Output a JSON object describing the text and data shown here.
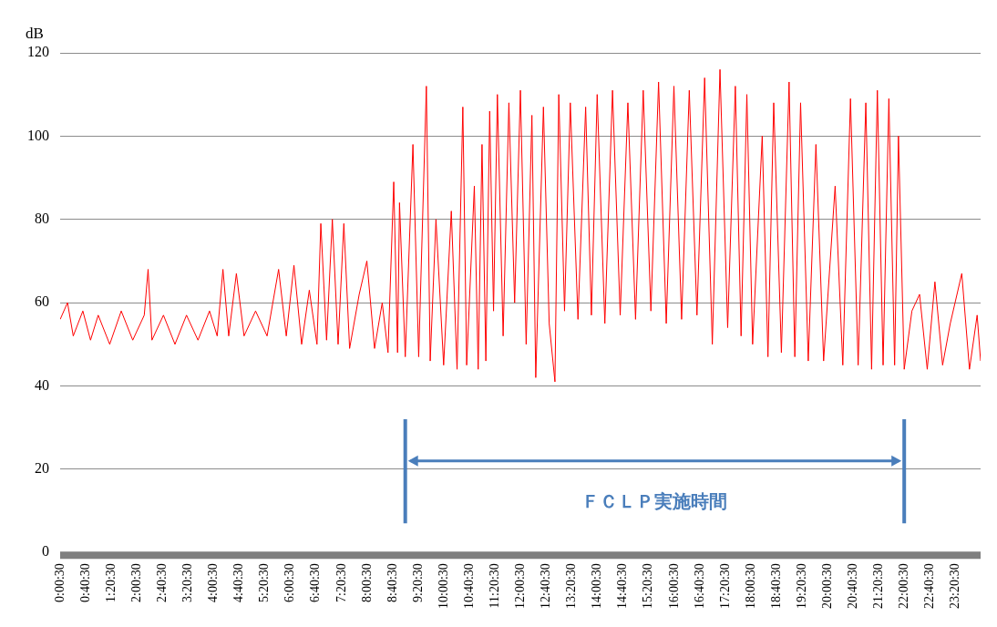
{
  "chart_data": {
    "type": "line",
    "ylabel": "dB",
    "x": [
      0.01,
      0.2,
      0.35,
      0.6,
      0.8,
      1.0,
      1.3,
      1.6,
      1.9,
      2.2,
      2.3,
      2.4,
      2.7,
      3.0,
      3.3,
      3.6,
      3.9,
      4.1,
      4.25,
      4.4,
      4.6,
      4.8,
      5.1,
      5.4,
      5.7,
      5.9,
      6.1,
      6.3,
      6.5,
      6.7,
      6.8,
      6.95,
      7.1,
      7.25,
      7.4,
      7.55,
      7.8,
      8.0,
      8.2,
      8.4,
      8.55,
      8.7,
      8.8,
      8.85,
      9.0,
      9.2,
      9.35,
      9.55,
      9.65,
      9.8,
      10.0,
      10.2,
      10.35,
      10.5,
      10.6,
      10.8,
      10.9,
      11.0,
      11.1,
      11.2,
      11.3,
      11.4,
      11.55,
      11.7,
      11.85,
      12.0,
      12.15,
      12.3,
      12.4,
      12.6,
      12.75,
      12.9,
      13.0,
      13.15,
      13.3,
      13.5,
      13.7,
      13.85,
      14.0,
      14.2,
      14.4,
      14.6,
      14.8,
      15.0,
      15.2,
      15.4,
      15.6,
      15.8,
      16.0,
      16.2,
      16.4,
      16.6,
      16.8,
      17.0,
      17.2,
      17.4,
      17.6,
      17.75,
      17.9,
      18.05,
      18.3,
      18.45,
      18.6,
      18.8,
      19.0,
      19.15,
      19.3,
      19.5,
      19.7,
      19.9,
      20.2,
      20.4,
      20.6,
      20.8,
      21.0,
      21.15,
      21.3,
      21.45,
      21.6,
      21.75,
      21.85,
      22.0,
      22.2,
      22.4,
      22.6,
      22.8,
      23.0,
      23.2,
      23.5,
      23.7,
      23.9,
      23.99
    ],
    "series": [
      {
        "color": "#ff0000",
        "values": [
          56,
          60,
          52,
          58,
          51,
          57,
          50,
          58,
          51,
          57,
          68,
          51,
          57,
          50,
          57,
          51,
          58,
          52,
          68,
          52,
          67,
          52,
          58,
          52,
          68,
          52,
          69,
          50,
          63,
          50,
          79,
          51,
          80,
          50,
          79,
          49,
          62,
          70,
          49,
          60,
          48,
          89,
          48,
          84,
          47,
          98,
          47,
          112,
          46,
          80,
          45,
          82,
          44,
          107,
          45,
          88,
          44,
          98,
          46,
          106,
          58,
          110,
          52,
          108,
          60,
          111,
          50,
          105,
          42,
          107,
          55,
          41,
          110,
          58,
          108,
          56,
          107,
          57,
          110,
          55,
          111,
          57,
          108,
          56,
          111,
          58,
          113,
          55,
          112,
          56,
          111,
          57,
          114,
          50,
          116,
          54,
          112,
          52,
          110,
          50,
          100,
          47,
          108,
          48,
          113,
          47,
          108,
          46,
          98,
          46,
          88,
          45,
          109,
          45,
          108,
          44,
          111,
          45,
          109,
          45,
          100,
          44,
          58,
          62,
          44,
          65,
          45,
          55,
          67,
          44,
          57,
          46
        ]
      }
    ],
    "xlim": [
      0.008333,
      23.99
    ],
    "xticks": [
      {
        "value": 0.008333,
        "label": "0:00:30"
      },
      {
        "value": 0.675,
        "label": "0:40:30"
      },
      {
        "value": 1.341667,
        "label": "1:20:30"
      },
      {
        "value": 2.008333,
        "label": "2:00:30"
      },
      {
        "value": 2.675,
        "label": "2:40:30"
      },
      {
        "value": 3.341667,
        "label": "3:20:30"
      },
      {
        "value": 4.008333,
        "label": "4:00:30"
      },
      {
        "value": 4.675,
        "label": "4:40:30"
      },
      {
        "value": 5.341667,
        "label": "5:20:30"
      },
      {
        "value": 6.008333,
        "label": "6:00:30"
      },
      {
        "value": 6.675,
        "label": "6:40:30"
      },
      {
        "value": 7.341667,
        "label": "7:20:30"
      },
      {
        "value": 8.008333,
        "label": "8:00:30"
      },
      {
        "value": 8.675,
        "label": "8:40:30"
      },
      {
        "value": 9.341667,
        "label": "9:20:30"
      },
      {
        "value": 10.008333,
        "label": "10:00:30"
      },
      {
        "value": 10.675,
        "label": "10:40:30"
      },
      {
        "value": 11.341667,
        "label": "11:20:30"
      },
      {
        "value": 12.008333,
        "label": "12:00:30"
      },
      {
        "value": 12.675,
        "label": "12:40:30"
      },
      {
        "value": 13.341667,
        "label": "13:20:30"
      },
      {
        "value": 14.008333,
        "label": "14:00:30"
      },
      {
        "value": 14.675,
        "label": "14:40:30"
      },
      {
        "value": 15.341667,
        "label": "15:20:30"
      },
      {
        "value": 16.008333,
        "label": "16:00:30"
      },
      {
        "value": 16.675,
        "label": "16:40:30"
      },
      {
        "value": 17.341667,
        "label": "17:20:30"
      },
      {
        "value": 18.008333,
        "label": "18:00:30"
      },
      {
        "value": 18.675,
        "label": "18:40:30"
      },
      {
        "value": 19.341667,
        "label": "19:20:30"
      },
      {
        "value": 20.008333,
        "label": "20:00:30"
      },
      {
        "value": 20.675,
        "label": "20:40:30"
      },
      {
        "value": 21.341667,
        "label": "21:20:30"
      },
      {
        "value": 22.008333,
        "label": "22:00:30"
      },
      {
        "value": 22.675,
        "label": "22:40:30"
      },
      {
        "value": 23.341667,
        "label": "23:20:30"
      }
    ],
    "ylim": [
      0,
      120
    ],
    "yticks": [
      0,
      20,
      40,
      60,
      80,
      100,
      120
    ],
    "grid": "y",
    "legend": false,
    "marker": "none",
    "line_style": "solid",
    "ref_lines": [
      {
        "axis": "x",
        "value": 9.0,
        "color": "#4a7ebb"
      },
      {
        "axis": "x",
        "value": 22.0,
        "color": "#4a7ebb"
      }
    ],
    "annotations": [
      "ＦＣＬＰ実施時間"
    ]
  }
}
